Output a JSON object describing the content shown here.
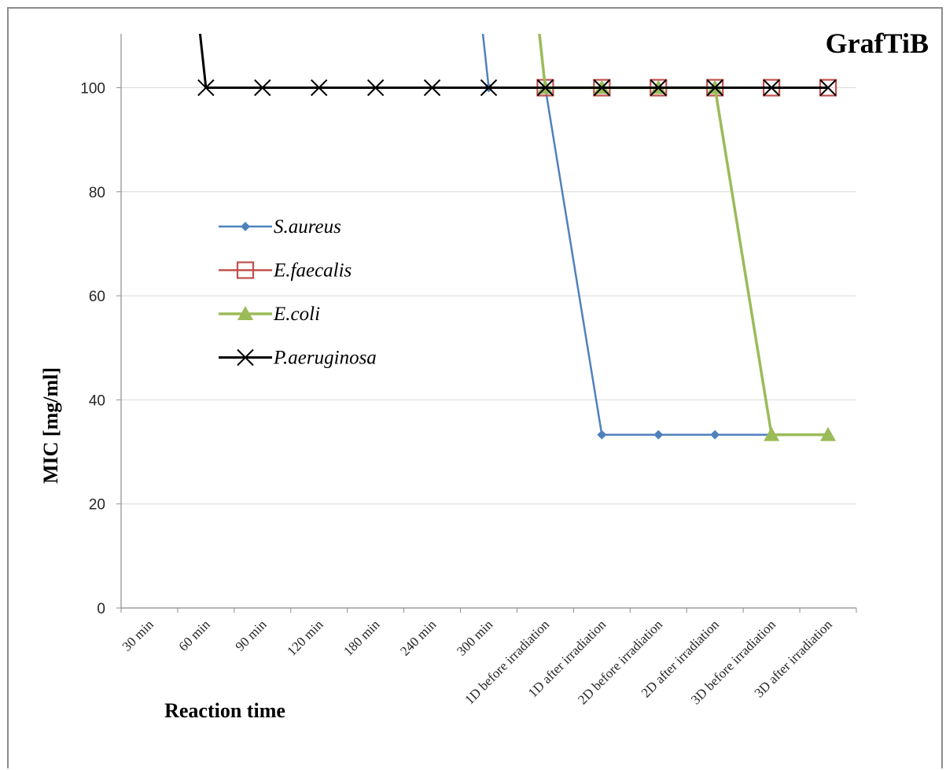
{
  "chart_data": {
    "type": "line",
    "title": "GrafTiB",
    "xlabel": "Reaction time",
    "ylabel": "MIC [mg/ml]",
    "categories": [
      "30 min",
      "60 min",
      "90 min",
      "120 min",
      "180 min",
      "240 min",
      "300 min",
      "1D before irradiation",
      "1D after irradiation",
      "2D before irradiation",
      "2D after irradiation",
      "3D before irradiation",
      "3D after irradiation"
    ],
    "ylim": [
      0,
      110
    ],
    "yticks": [
      0,
      20,
      40,
      60,
      80,
      100
    ],
    "grid": "horizontal",
    "legend_position": "left-middle",
    "series": [
      {
        "name": "S.aureus",
        "color": "#4f81bd",
        "marker": "diamond",
        "values": [
          null,
          null,
          null,
          null,
          null,
          200,
          100,
          100,
          33.3,
          33.3,
          33.3,
          33.3,
          null
        ]
      },
      {
        "name": "E.faecalis",
        "color": "#c0504d",
        "marker": "square-open",
        "values": [
          null,
          null,
          null,
          null,
          null,
          null,
          null,
          100,
          100,
          100,
          100,
          100,
          100
        ]
      },
      {
        "name": "E.coli",
        "color": "#9bbb59",
        "marker": "triangle",
        "values": [
          null,
          null,
          null,
          null,
          null,
          null,
          200,
          100,
          100,
          100,
          100,
          33.3,
          33.3
        ]
      },
      {
        "name": "P.aeruginosa",
        "color": "#000000",
        "marker": "x",
        "values": [
          200,
          100,
          100,
          100,
          100,
          100,
          100,
          100,
          100,
          100,
          100,
          100,
          100
        ]
      }
    ]
  }
}
